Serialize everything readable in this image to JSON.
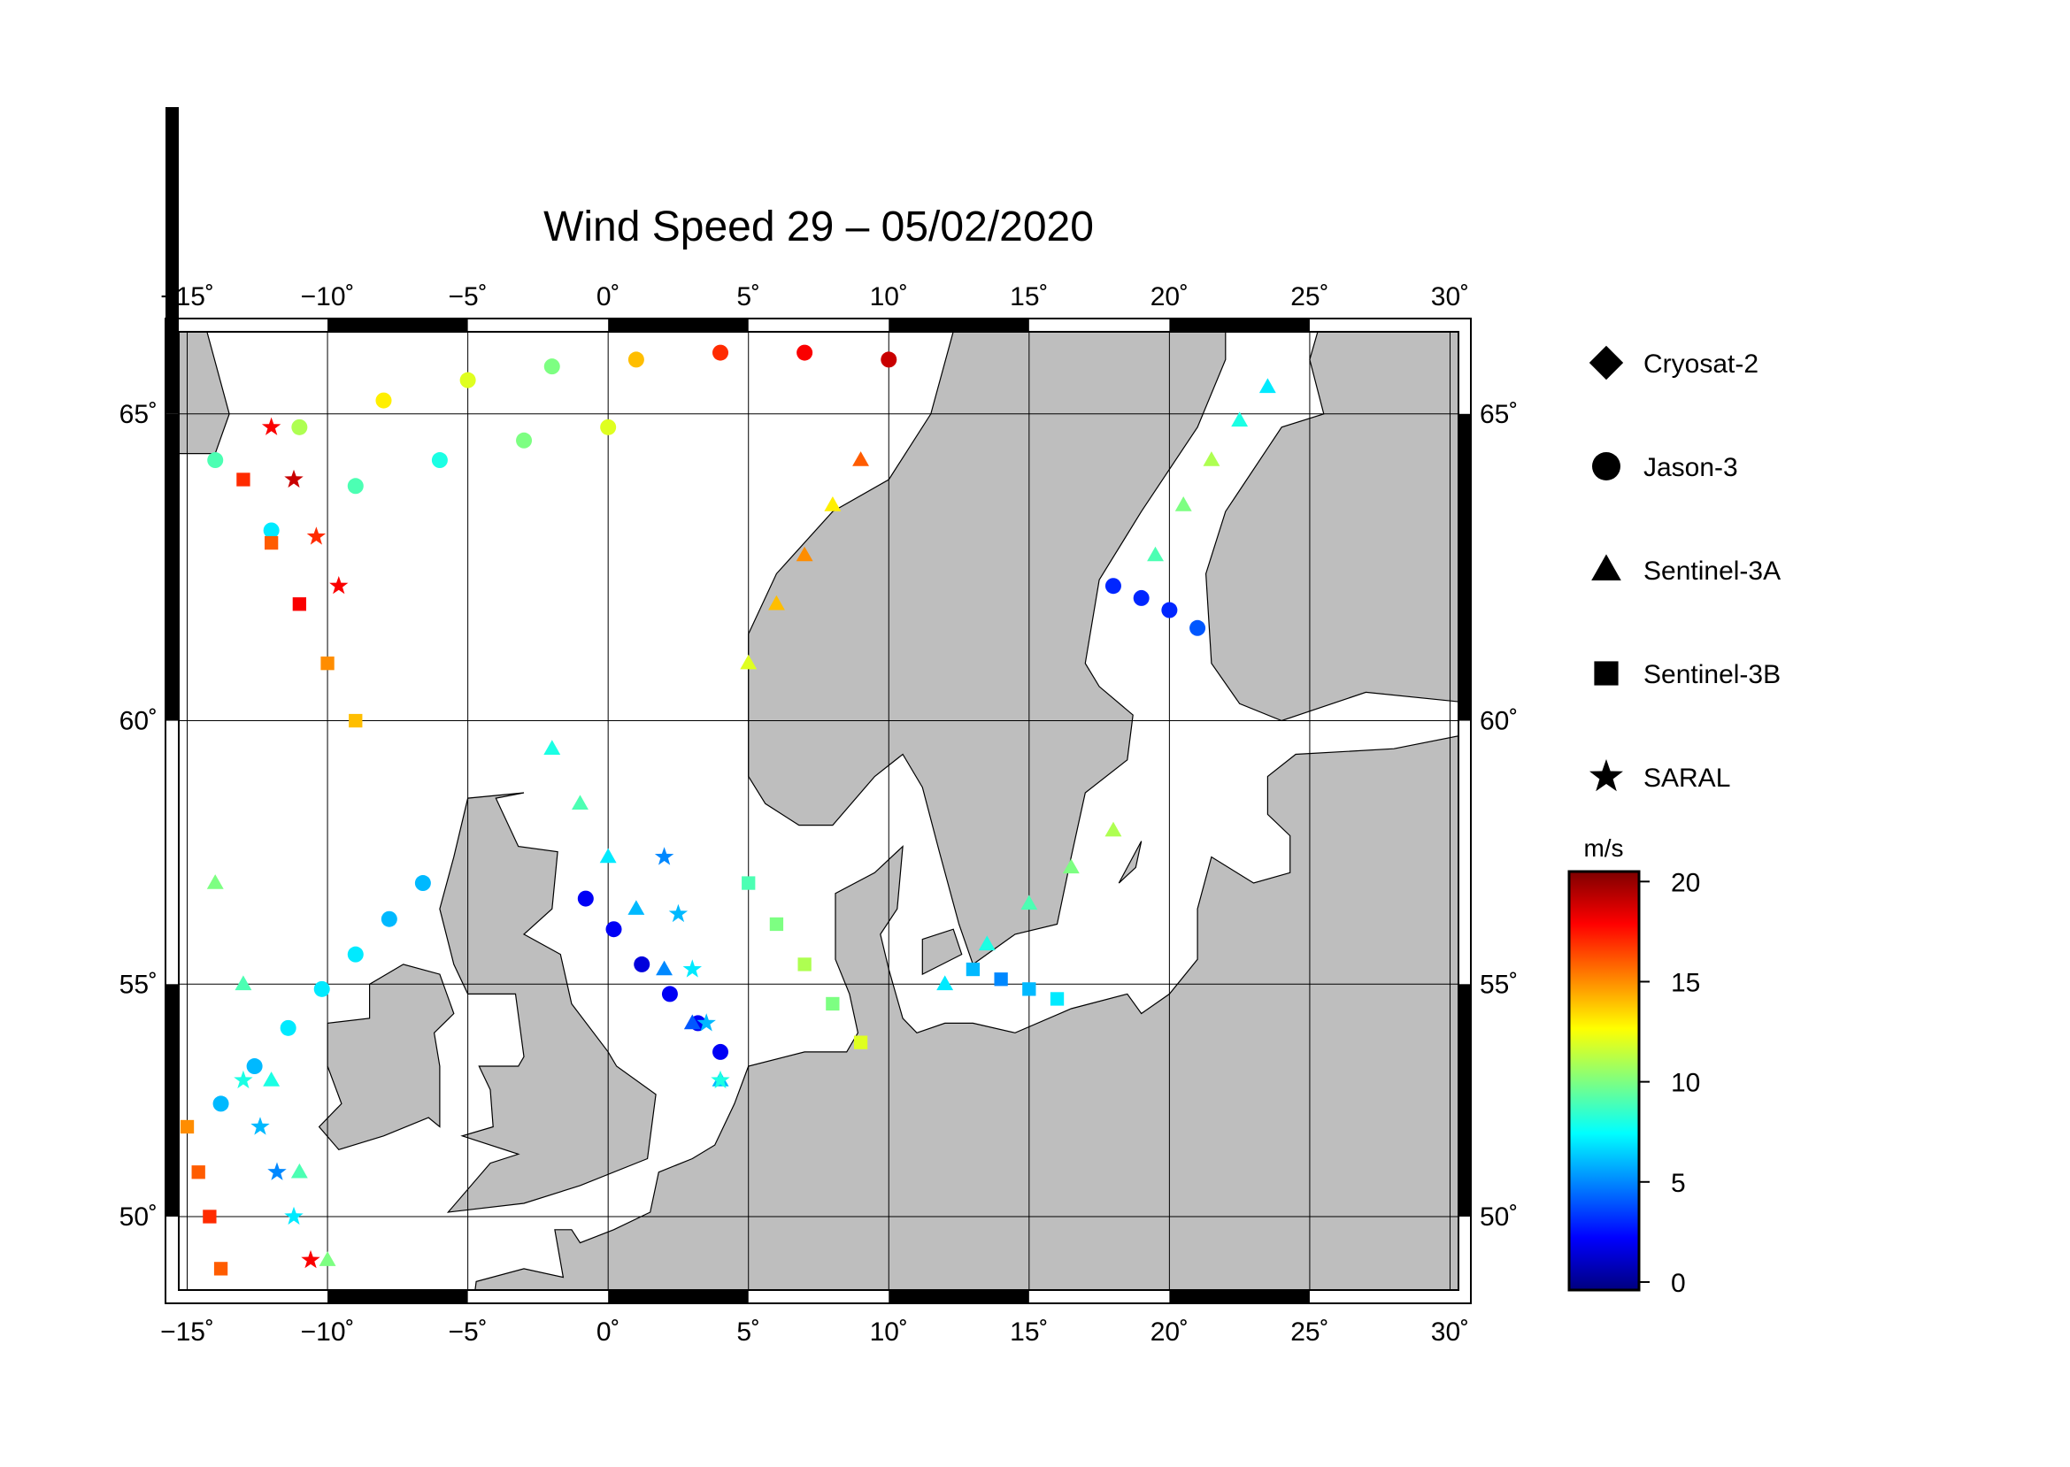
{
  "chart_data": {
    "type": "map",
    "title": "Wind Speed 29 – 05/02/2020",
    "xlim": [
      -15.3,
      30.3
    ],
    "ylim": [
      48.3,
      66.2
    ],
    "grid": true,
    "xticks": [
      {
        "value": -15,
        "label": "−15˚"
      },
      {
        "value": -10,
        "label": "−10˚"
      },
      {
        "value": -5,
        "label": "−5˚"
      },
      {
        "value": 0,
        "label": "0˚"
      },
      {
        "value": 5,
        "label": "5˚"
      },
      {
        "value": 10,
        "label": "10˚"
      },
      {
        "value": 15,
        "label": "15˚"
      },
      {
        "value": 20,
        "label": "20˚"
      },
      {
        "value": 25,
        "label": "25˚"
      },
      {
        "value": 30,
        "label": "30˚"
      }
    ],
    "yticks": [
      {
        "value": 50,
        "label": "50˚"
      },
      {
        "value": 55,
        "label": "55˚"
      },
      {
        "value": 60,
        "label": "60˚"
      },
      {
        "value": 65,
        "label": "65˚"
      }
    ],
    "colorbar": {
      "label": "m/s",
      "lim": [
        -0.4,
        20.5
      ],
      "ticks": [
        0,
        5,
        10,
        15,
        20
      ]
    },
    "series": [
      {
        "name": "Cryosat-2",
        "marker": "diamond",
        "lon": [],
        "lat": [],
        "values": []
      },
      {
        "name": "Jason-3",
        "marker": "circle",
        "lon": [
          -13.8,
          -12.6,
          -11.4,
          -10.2,
          -9,
          -7.8,
          -6.6,
          -0.8,
          0.2,
          1.2,
          2.2,
          3.2,
          4,
          18,
          19,
          20,
          21,
          -14,
          -11,
          -8,
          -5,
          -2,
          1,
          4,
          7,
          10,
          -12,
          -9,
          -6,
          -3,
          0
        ],
        "lat": [
          52.5,
          53.3,
          54.1,
          54.9,
          55.6,
          56.3,
          57.0,
          56.7,
          56.1,
          55.4,
          54.8,
          54.2,
          53.6,
          62.3,
          62.1,
          61.9,
          61.6,
          64.3,
          64.8,
          65.2,
          65.5,
          65.7,
          65.8,
          65.9,
          65.9,
          65.8,
          63.2,
          63.9,
          64.3,
          64.6,
          64.8
        ],
        "values": [
          6,
          6,
          7,
          7,
          7,
          6,
          6,
          2,
          2,
          1.5,
          2,
          2,
          2,
          3,
          3,
          3,
          4,
          9,
          11,
          13,
          12,
          10,
          14,
          17,
          18,
          19,
          7,
          9,
          8,
          10,
          12
        ]
      },
      {
        "name": "Sentinel-3A",
        "marker": "triangle",
        "lon": [
          -2,
          -1,
          0,
          1,
          2,
          3,
          4,
          -14,
          -13,
          -12,
          -11,
          -10,
          12,
          13.5,
          15,
          16.5,
          18,
          19.5,
          20.5,
          21.5,
          22.5,
          23.5,
          5,
          6,
          7,
          8,
          9
        ],
        "lat": [
          59.5,
          58.5,
          57.5,
          56.5,
          55.3,
          54.2,
          53,
          57,
          55,
          53,
          51,
          49,
          55,
          55.8,
          56.6,
          57.3,
          58,
          62.8,
          63.6,
          64.3,
          64.9,
          65.4,
          61,
          62,
          62.8,
          63.6,
          64.3
        ],
        "values": [
          8,
          9,
          7,
          6,
          5,
          4,
          6,
          10,
          9,
          8,
          9,
          10,
          7,
          8,
          9,
          10,
          11,
          9,
          10,
          11,
          8,
          7,
          12,
          14,
          15,
          13,
          16
        ]
      },
      {
        "name": "Sentinel-3B",
        "marker": "square",
        "lon": [
          -13,
          -12,
          -11,
          -10,
          -9,
          5,
          6,
          7,
          8,
          9,
          -15,
          -14.6,
          -14.2,
          -13.8,
          13,
          14,
          15,
          16
        ],
        "lat": [
          64,
          63,
          62,
          61,
          60,
          57,
          56.2,
          55.4,
          54.6,
          53.8,
          52,
          51,
          50,
          48.8,
          55.3,
          55.1,
          54.9,
          54.7
        ],
        "values": [
          17,
          16,
          18,
          15,
          14,
          9,
          10,
          11,
          10,
          12,
          15,
          16,
          17,
          16,
          6,
          5,
          6,
          7
        ]
      },
      {
        "name": "SARAL",
        "marker": "star",
        "lon": [
          -12,
          -11.2,
          -10.4,
          -9.6,
          -13,
          -12.4,
          -11.8,
          -11.2,
          -10.6,
          2,
          2.5,
          3,
          3.5,
          4
        ],
        "lat": [
          64.8,
          64,
          63.1,
          62.3,
          53,
          52,
          51,
          50,
          49,
          57.5,
          56.4,
          55.3,
          54.2,
          53
        ],
        "values": [
          18,
          19,
          17,
          18,
          8,
          6,
          5,
          7,
          18,
          5,
          6,
          7,
          6,
          8
        ]
      }
    ]
  }
}
